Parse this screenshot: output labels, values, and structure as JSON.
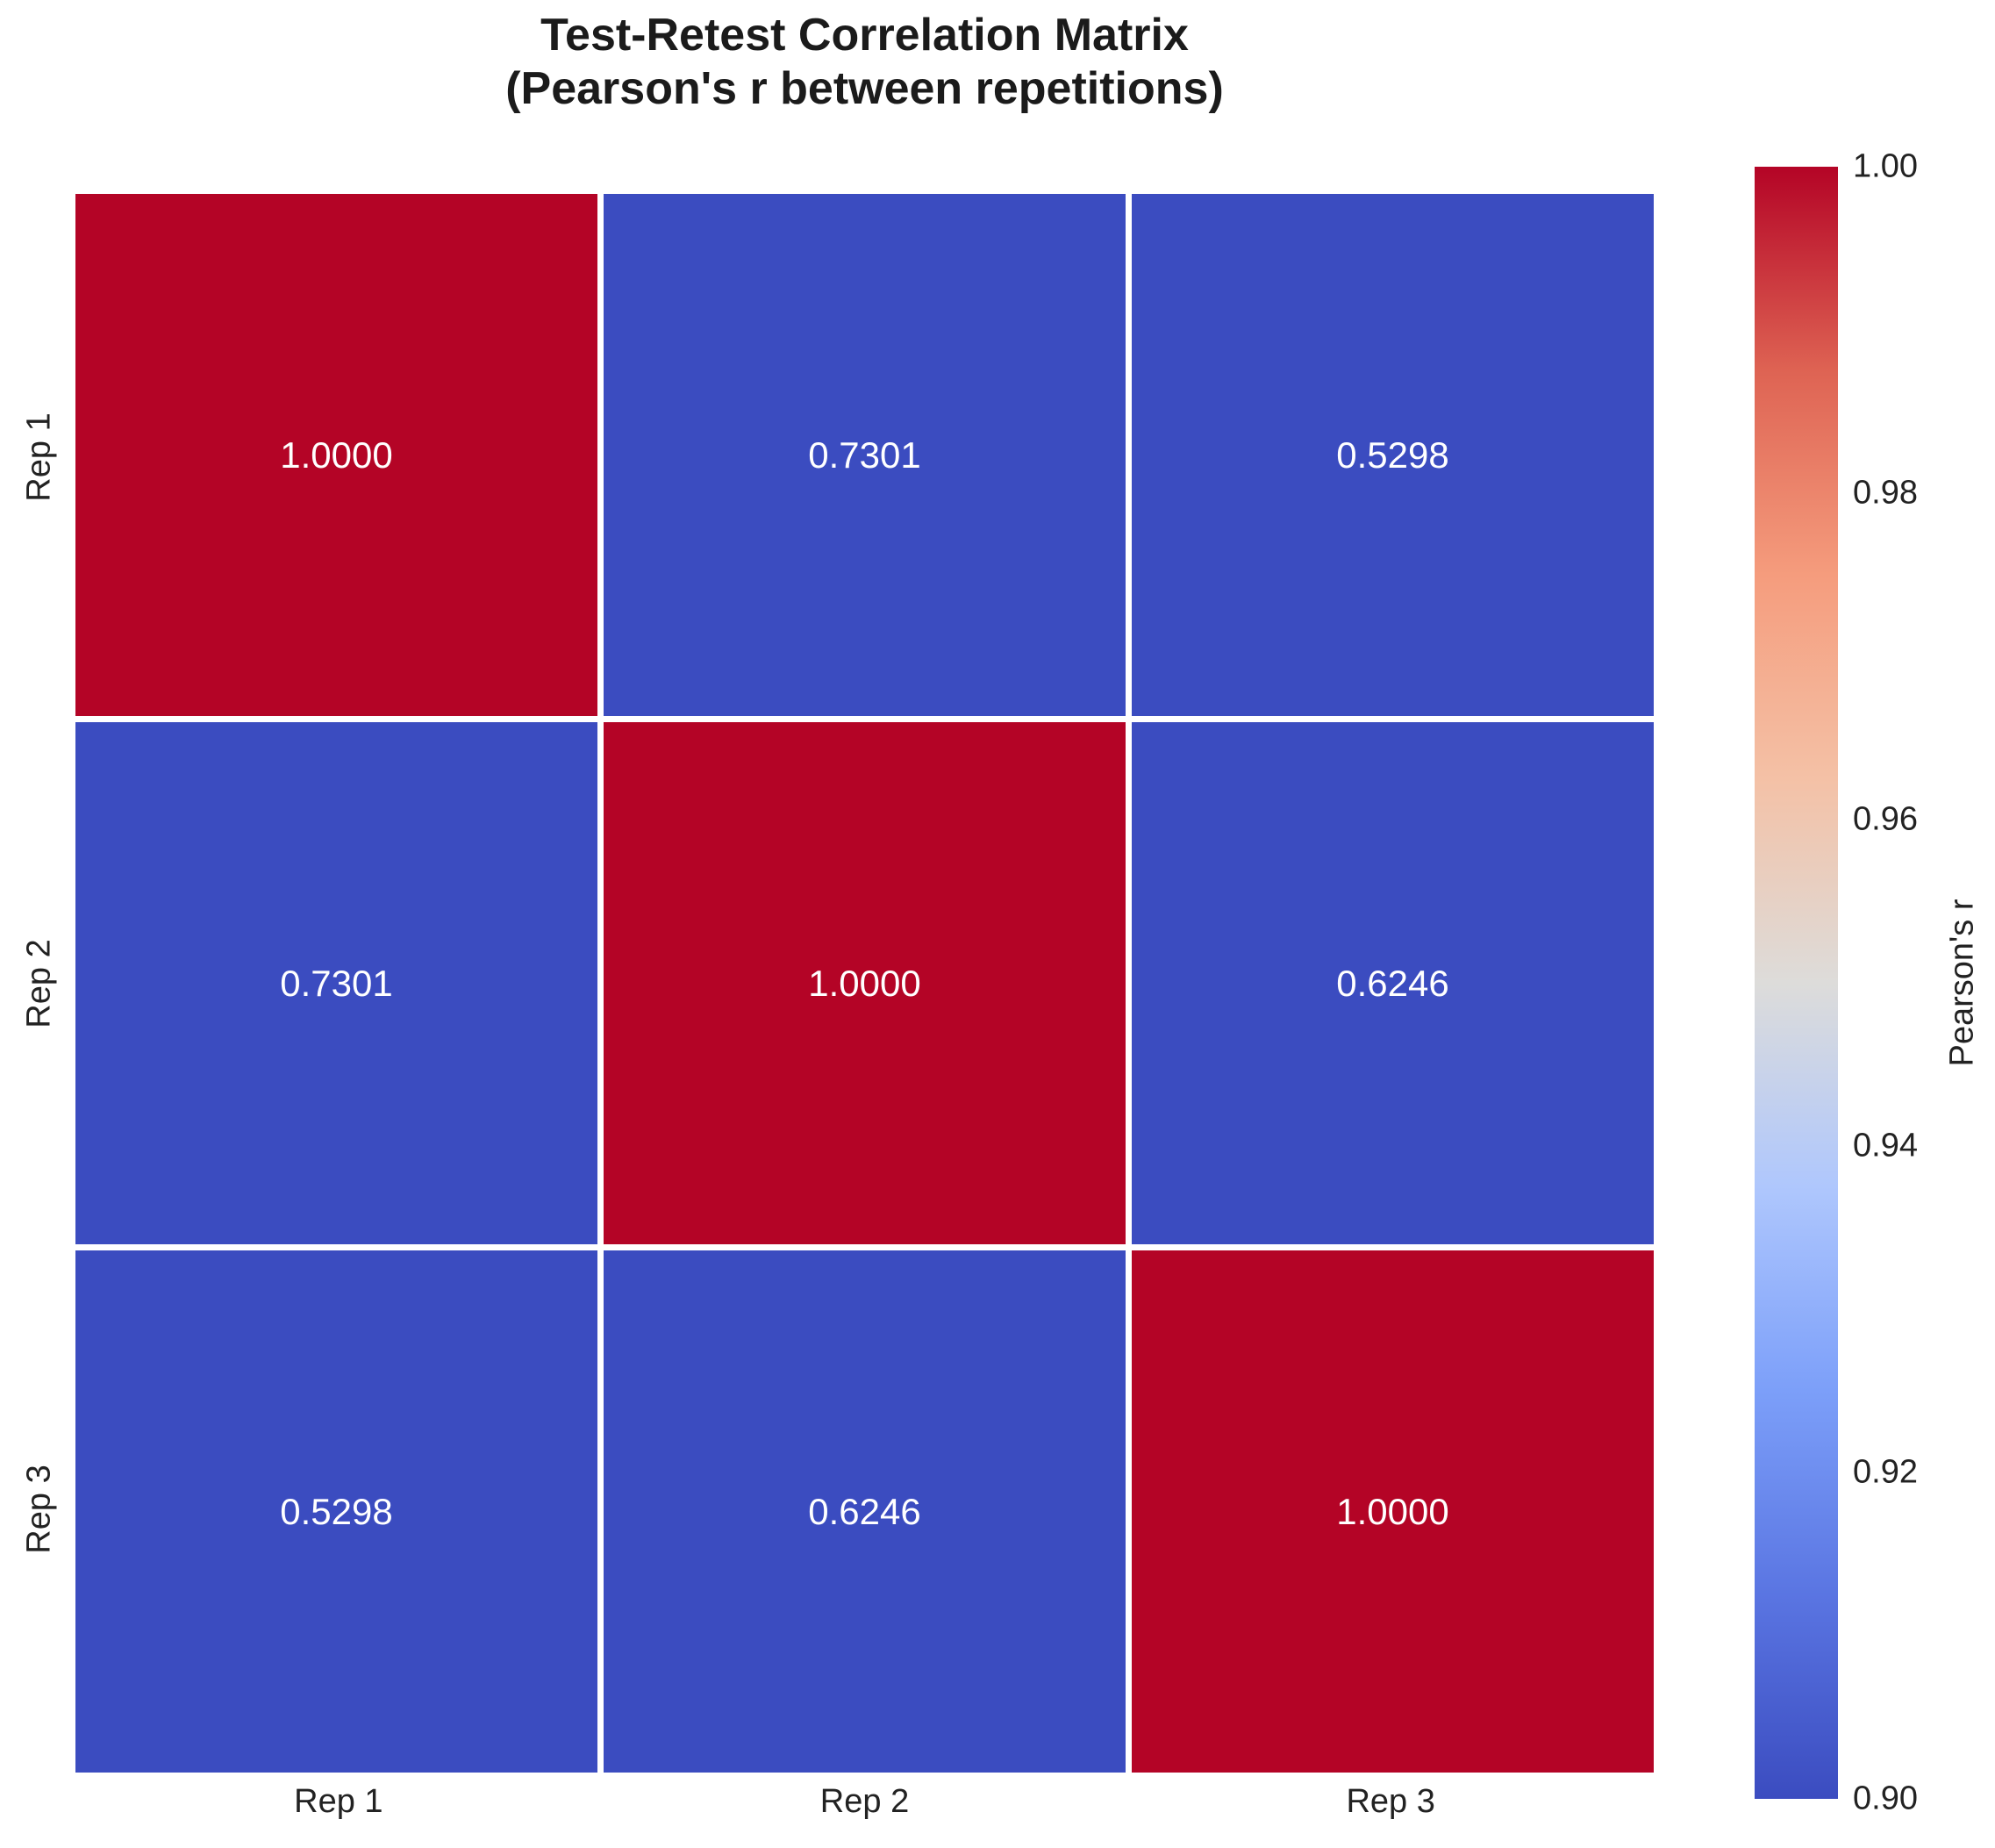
{
  "title": {
    "line1": "Test-Retest Correlation Matrix",
    "line2": "(Pearson's r between repetitions)"
  },
  "chart_data": {
    "type": "heatmap",
    "title": "Test-Retest Correlation Matrix (Pearson's r between repetitions)",
    "x_categories": [
      "Rep 1",
      "Rep 2",
      "Rep 3"
    ],
    "y_categories": [
      "Rep 1",
      "Rep 2",
      "Rep 3"
    ],
    "matrix": [
      [
        1.0,
        0.7301,
        0.5298
      ],
      [
        0.7301,
        1.0,
        0.6246
      ],
      [
        0.5298,
        0.6246,
        1.0
      ]
    ],
    "annotations": [
      [
        "1.0000",
        "0.7301",
        "0.5298"
      ],
      [
        "0.7301",
        "1.0000",
        "0.6246"
      ],
      [
        "0.5298",
        "0.6246",
        "1.0000"
      ]
    ],
    "vmin": 0.9,
    "vmax": 1.0,
    "colormap": "coolwarm",
    "grid": false,
    "colors": {
      "high": "#B40426",
      "low": "#3B4CC0",
      "annotation_text": "#FFFFFF",
      "cell_gap": "#FFFFFF"
    },
    "colorbar": {
      "label": "Pearson's r",
      "position": "right",
      "ticks": [
        "1.00",
        "0.98",
        "0.96",
        "0.94",
        "0.92",
        "0.90"
      ]
    }
  }
}
